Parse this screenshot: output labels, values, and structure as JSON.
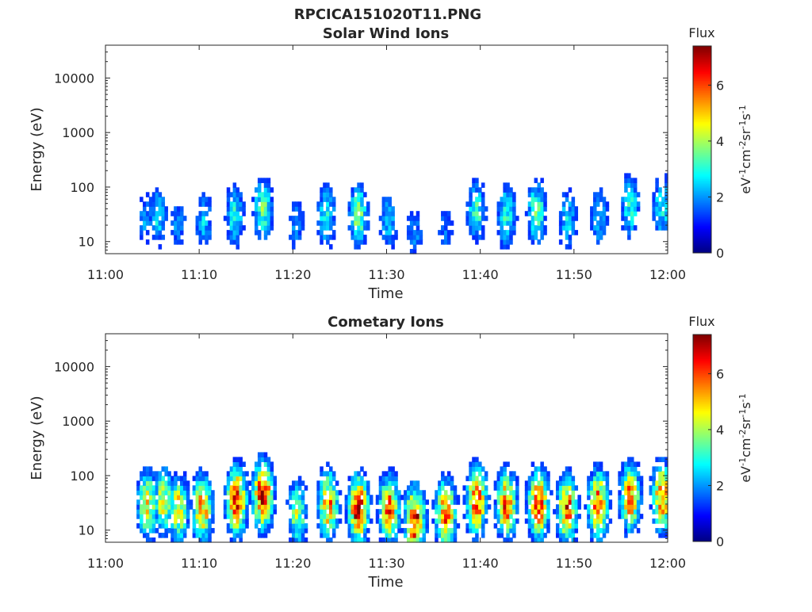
{
  "figure_title": "RPCICA151020T11.PNG",
  "chart_data": [
    {
      "type": "heatmap",
      "title": "Solar Wind Ions",
      "xlabel": "Time",
      "ylabel": "Energy (eV)",
      "x_ticks": [
        "11:00",
        "11:10",
        "11:20",
        "11:30",
        "11:40",
        "11:50",
        "12:00"
      ],
      "xlim": [
        "11:00",
        "12:00"
      ],
      "y_scale": "log",
      "y_ticks": [
        "10",
        "100",
        "1000",
        "10000"
      ],
      "ylim": [
        6,
        40000
      ],
      "colorbar": {
        "label": "Flux",
        "unit": "eV-1cm-2sr-1s-1",
        "ticks": [
          "0",
          "2",
          "4",
          "6"
        ],
        "range": [
          0,
          7.4
        ],
        "colormap": "jet"
      },
      "intensity_note": "Flux mostly 1-4, at energies ~10-100 eV",
      "bursts": [
        {
          "t": 4.3,
          "e": 25,
          "v": 2.0
        },
        {
          "t": 5.6,
          "e": 30,
          "v": 2.6
        },
        {
          "t": 7.8,
          "e": 22,
          "v": 2.0
        },
        {
          "t": 10.5,
          "e": 25,
          "v": 2.4
        },
        {
          "t": 13.8,
          "e": 30,
          "v": 3.0
        },
        {
          "t": 16.8,
          "e": 40,
          "v": 3.6
        },
        {
          "t": 20.3,
          "e": 22,
          "v": 2.0
        },
        {
          "t": 23.6,
          "e": 30,
          "v": 3.0
        },
        {
          "t": 27.0,
          "e": 30,
          "v": 3.8
        },
        {
          "t": 30.2,
          "e": 25,
          "v": 2.4
        },
        {
          "t": 33.0,
          "e": 15,
          "v": 2.0
        },
        {
          "t": 36.3,
          "e": 18,
          "v": 1.8
        },
        {
          "t": 39.6,
          "e": 35,
          "v": 3.2
        },
        {
          "t": 42.8,
          "e": 30,
          "v": 3.2
        },
        {
          "t": 46.0,
          "e": 35,
          "v": 3.6
        },
        {
          "t": 49.3,
          "e": 25,
          "v": 2.6
        },
        {
          "t": 52.6,
          "e": 30,
          "v": 2.6
        },
        {
          "t": 56.0,
          "e": 45,
          "v": 3.0
        },
        {
          "t": 59.4,
          "e": 45,
          "v": 3.0
        }
      ]
    },
    {
      "type": "heatmap",
      "title": "Cometary Ions",
      "xlabel": "Time",
      "ylabel": "Energy (eV)",
      "x_ticks": [
        "11:00",
        "11:10",
        "11:20",
        "11:30",
        "11:40",
        "11:50",
        "12:00"
      ],
      "xlim": [
        "11:00",
        "12:00"
      ],
      "y_scale": "log",
      "y_ticks": [
        "10",
        "100",
        "1000",
        "10000"
      ],
      "ylim": [
        6,
        40000
      ],
      "colorbar": {
        "label": "Flux",
        "unit": "eV-1cm-2sr-1s-1",
        "ticks": [
          "0",
          "2",
          "4",
          "6"
        ],
        "range": [
          0,
          7.4
        ],
        "colormap": "jet"
      },
      "intensity_note": "Flux up to ~7, peak near 20-40 eV",
      "bursts": [
        {
          "t": 4.5,
          "e": 30,
          "v": 5.0
        },
        {
          "t": 6.2,
          "e": 35,
          "v": 4.5
        },
        {
          "t": 7.8,
          "e": 25,
          "v": 4.8
        },
        {
          "t": 10.3,
          "e": 25,
          "v": 5.6
        },
        {
          "t": 14.0,
          "e": 35,
          "v": 6.6
        },
        {
          "t": 16.8,
          "e": 45,
          "v": 7.0
        },
        {
          "t": 20.5,
          "e": 20,
          "v": 4.0
        },
        {
          "t": 23.8,
          "e": 30,
          "v": 5.6
        },
        {
          "t": 27.0,
          "e": 25,
          "v": 6.8
        },
        {
          "t": 30.3,
          "e": 25,
          "v": 5.8
        },
        {
          "t": 33.0,
          "e": 15,
          "v": 6.8
        },
        {
          "t": 36.3,
          "e": 20,
          "v": 6.2
        },
        {
          "t": 39.6,
          "e": 35,
          "v": 6.4
        },
        {
          "t": 42.8,
          "e": 30,
          "v": 6.0
        },
        {
          "t": 46.2,
          "e": 30,
          "v": 6.6
        },
        {
          "t": 49.3,
          "e": 25,
          "v": 6.0
        },
        {
          "t": 52.6,
          "e": 30,
          "v": 6.2
        },
        {
          "t": 56.0,
          "e": 40,
          "v": 5.8
        },
        {
          "t": 59.4,
          "e": 40,
          "v": 6.0
        }
      ]
    }
  ]
}
